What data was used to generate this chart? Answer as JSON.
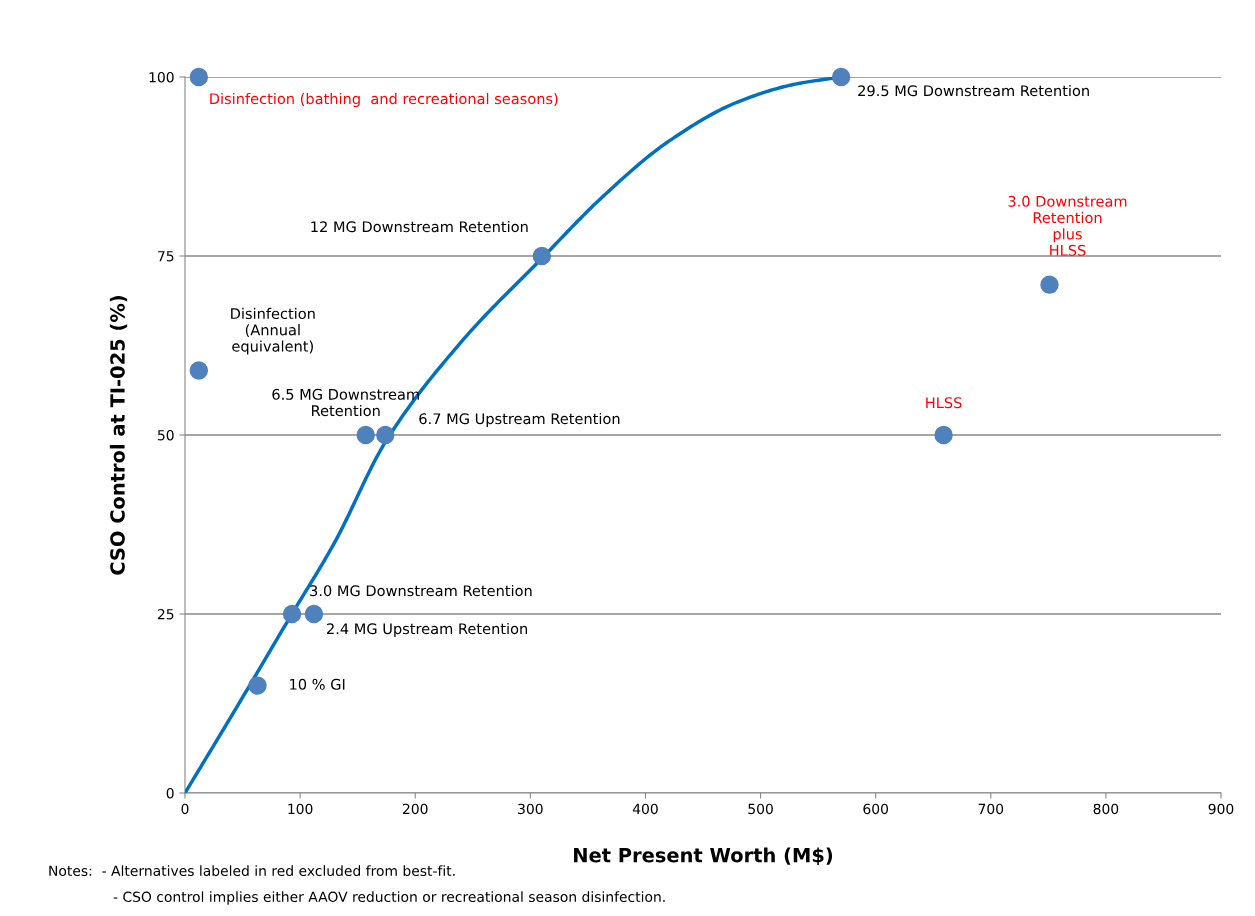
{
  "chart_data": {
    "type": "scatter",
    "xlabel": "Net Present Worth (M$)",
    "ylabel": "CSO Control at TI-025 (%)",
    "xlim": [
      0,
      900
    ],
    "xticks": [
      0,
      100,
      200,
      300,
      400,
      500,
      600,
      700,
      800,
      900
    ],
    "ylim": [
      0,
      100
    ],
    "yticks": [
      0,
      25,
      50,
      75,
      100
    ],
    "grid": "y",
    "marker": "circle",
    "series": [
      {
        "color": "#4f81bd",
        "x": [
          12,
          12,
          157,
          174,
          310,
          570,
          751,
          659,
          93,
          112,
          63
        ],
        "values": [
          100,
          59,
          50,
          50,
          75,
          100,
          71,
          50,
          25,
          25,
          15
        ]
      },
      {
        "type": "line",
        "color": "#0070c0",
        "marker": "none",
        "x": [
          0,
          45,
          91,
          130,
          174,
          240,
          312,
          361,
          420,
          480,
          530,
          570
        ],
        "values": [
          0,
          12,
          24.5,
          35,
          49,
          63,
          75,
          83,
          91,
          96.5,
          99,
          100
        ]
      }
    ],
    "annotations": [
      {
        "text": "Disinfection (bathing  and recreational seasons)",
        "x": 12,
        "y": 100
      },
      {
        "text": "Disinfection\n(Annual\nequivalent)",
        "x": 12,
        "y": 59
      },
      {
        "text": "6.5 MG Downstream\nRetention",
        "x": 157,
        "y": 50
      },
      {
        "text": "6.7 MG Upstream Retention",
        "x": 174,
        "y": 50
      },
      {
        "text": "12 MG Downstream Retention",
        "x": 310,
        "y": 75
      },
      {
        "text": "29.5 MG Downstream Retention",
        "x": 570,
        "y": 100
      },
      {
        "text": "3.0 Downstream\nRetention\nplus\nHLSS",
        "x": 751,
        "y": 71
      },
      {
        "text": "HLSS",
        "x": 659,
        "y": 50
      },
      {
        "text": "3.0 MG Downstream Retention",
        "x": 93,
        "y": 25
      },
      {
        "text": "2.4 MG Upstream Retention",
        "x": 112,
        "y": 25
      },
      {
        "text": "10 % GI",
        "x": 63,
        "y": 15
      },
      "Notes:  - Alternatives labeled in red excluded from best-fit.",
      "- CSO control implies either AAOV reduction or recreational season disinfection."
    ]
  }
}
